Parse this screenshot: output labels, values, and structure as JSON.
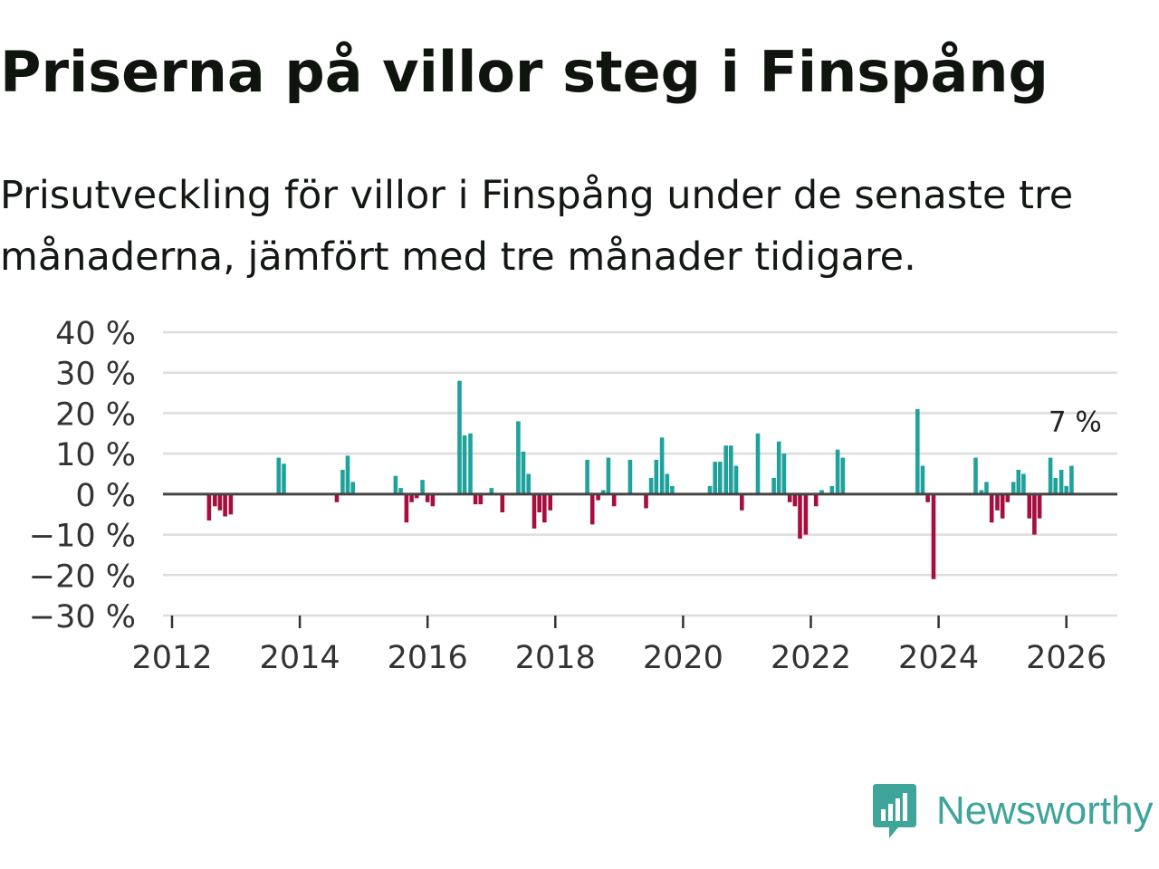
{
  "header": {
    "title": "Priserna på villor steg i Finspång",
    "subtitle": "Prisutveckling för villor i Finspång under de senaste tre månaderna, jämfört med tre månader tidigare."
  },
  "brand": {
    "name": "Newsworthy",
    "logo_icon": "newsworthy-bar-chart-icon",
    "color": "#3fa49a"
  },
  "colors": {
    "positive": "#1fa29c",
    "negative": "#a50e3d",
    "grid": "#dddddd",
    "zero_line": "#444444",
    "axis": "#333333"
  },
  "chart_data": {
    "type": "bar",
    "title": "Priserna på villor steg i Finspång",
    "subtitle": "Prisutveckling för villor i Finspång under de senaste tre månaderna, jämfört med tre månader tidigare.",
    "xlabel": "",
    "ylabel": "",
    "x_unit": "year",
    "y_unit": "percent",
    "ylim": [
      -30,
      40
    ],
    "xlim": [
      2011.8,
      2026.8
    ],
    "y_ticks": [
      {
        "value": 40,
        "label": "40 %"
      },
      {
        "value": 30,
        "label": "30 %"
      },
      {
        "value": 20,
        "label": "20 %"
      },
      {
        "value": 10,
        "label": "10 %"
      },
      {
        "value": 0,
        "label": "0 %"
      },
      {
        "value": -10,
        "label": "−10 %"
      },
      {
        "value": -20,
        "label": "−20 %"
      },
      {
        "value": -30,
        "label": "−30 %"
      }
    ],
    "x_ticks": [
      {
        "value": 2012,
        "label": "2012"
      },
      {
        "value": 2014,
        "label": "2014"
      },
      {
        "value": 2016,
        "label": "2016"
      },
      {
        "value": 2018,
        "label": "2018"
      },
      {
        "value": 2020,
        "label": "2020"
      },
      {
        "value": 2022,
        "label": "2022"
      },
      {
        "value": 2024,
        "label": "2024"
      },
      {
        "value": 2026,
        "label": "2026"
      }
    ],
    "grid": true,
    "legend": "none",
    "bar_width_years": 0.065,
    "annotation": {
      "x": 2026.08,
      "value": 7,
      "label": "7 %"
    },
    "points": [
      {
        "x": 2012.58,
        "value": -6.5
      },
      {
        "x": 2012.67,
        "value": -3
      },
      {
        "x": 2012.75,
        "value": -4
      },
      {
        "x": 2012.83,
        "value": -5.5
      },
      {
        "x": 2012.92,
        "value": -5
      },
      {
        "x": 2013.67,
        "value": 9
      },
      {
        "x": 2013.75,
        "value": 7.5
      },
      {
        "x": 2014.58,
        "value": -2
      },
      {
        "x": 2014.67,
        "value": 6
      },
      {
        "x": 2014.75,
        "value": 9.5
      },
      {
        "x": 2014.83,
        "value": 3
      },
      {
        "x": 2015.5,
        "value": 4.5
      },
      {
        "x": 2015.58,
        "value": 1.5
      },
      {
        "x": 2015.67,
        "value": -7
      },
      {
        "x": 2015.75,
        "value": -2
      },
      {
        "x": 2015.83,
        "value": -1
      },
      {
        "x": 2015.92,
        "value": 3.5
      },
      {
        "x": 2016.0,
        "value": -2
      },
      {
        "x": 2016.08,
        "value": -3
      },
      {
        "x": 2016.5,
        "value": 28
      },
      {
        "x": 2016.58,
        "value": 14.5
      },
      {
        "x": 2016.67,
        "value": 15
      },
      {
        "x": 2016.75,
        "value": -2.5
      },
      {
        "x": 2016.83,
        "value": -2.5
      },
      {
        "x": 2017.0,
        "value": 1.5
      },
      {
        "x": 2017.17,
        "value": -4.5
      },
      {
        "x": 2017.42,
        "value": 18
      },
      {
        "x": 2017.5,
        "value": 10.5
      },
      {
        "x": 2017.58,
        "value": 5
      },
      {
        "x": 2017.67,
        "value": -8.5
      },
      {
        "x": 2017.75,
        "value": -4.5
      },
      {
        "x": 2017.83,
        "value": -7
      },
      {
        "x": 2017.92,
        "value": -4
      },
      {
        "x": 2018.5,
        "value": 8.5
      },
      {
        "x": 2018.58,
        "value": -7.5
      },
      {
        "x": 2018.67,
        "value": -1.5
      },
      {
        "x": 2018.75,
        "value": 1
      },
      {
        "x": 2018.83,
        "value": 9
      },
      {
        "x": 2018.92,
        "value": -3
      },
      {
        "x": 2019.17,
        "value": 8.5
      },
      {
        "x": 2019.42,
        "value": -3.5
      },
      {
        "x": 2019.5,
        "value": 4
      },
      {
        "x": 2019.58,
        "value": 8.5
      },
      {
        "x": 2019.67,
        "value": 14
      },
      {
        "x": 2019.75,
        "value": 5
      },
      {
        "x": 2019.83,
        "value": 2
      },
      {
        "x": 2020.42,
        "value": 2
      },
      {
        "x": 2020.5,
        "value": 8
      },
      {
        "x": 2020.58,
        "value": 8
      },
      {
        "x": 2020.67,
        "value": 12
      },
      {
        "x": 2020.75,
        "value": 12
      },
      {
        "x": 2020.83,
        "value": 7
      },
      {
        "x": 2020.92,
        "value": -4
      },
      {
        "x": 2021.17,
        "value": 15
      },
      {
        "x": 2021.42,
        "value": 4
      },
      {
        "x": 2021.5,
        "value": 13
      },
      {
        "x": 2021.58,
        "value": 10
      },
      {
        "x": 2021.67,
        "value": -2
      },
      {
        "x": 2021.75,
        "value": -3
      },
      {
        "x": 2021.83,
        "value": -11
      },
      {
        "x": 2021.92,
        "value": -10
      },
      {
        "x": 2022.08,
        "value": -3
      },
      {
        "x": 2022.17,
        "value": 1
      },
      {
        "x": 2022.33,
        "value": 2
      },
      {
        "x": 2022.42,
        "value": 11
      },
      {
        "x": 2022.5,
        "value": 9
      },
      {
        "x": 2023.67,
        "value": 21
      },
      {
        "x": 2023.75,
        "value": 7
      },
      {
        "x": 2023.83,
        "value": -2
      },
      {
        "x": 2023.92,
        "value": -21
      },
      {
        "x": 2024.58,
        "value": 9
      },
      {
        "x": 2024.67,
        "value": 1
      },
      {
        "x": 2024.75,
        "value": 3
      },
      {
        "x": 2024.83,
        "value": -7
      },
      {
        "x": 2024.92,
        "value": -4
      },
      {
        "x": 2025.0,
        "value": -6
      },
      {
        "x": 2025.08,
        "value": -2
      },
      {
        "x": 2025.17,
        "value": 3
      },
      {
        "x": 2025.25,
        "value": 6
      },
      {
        "x": 2025.33,
        "value": 5
      },
      {
        "x": 2025.42,
        "value": -6
      },
      {
        "x": 2025.5,
        "value": -10
      },
      {
        "x": 2025.58,
        "value": -6
      },
      {
        "x": 2025.75,
        "value": 9
      },
      {
        "x": 2025.83,
        "value": 4
      },
      {
        "x": 2025.92,
        "value": 6
      },
      {
        "x": 2026.0,
        "value": 2
      },
      {
        "x": 2026.08,
        "value": 7
      }
    ]
  }
}
